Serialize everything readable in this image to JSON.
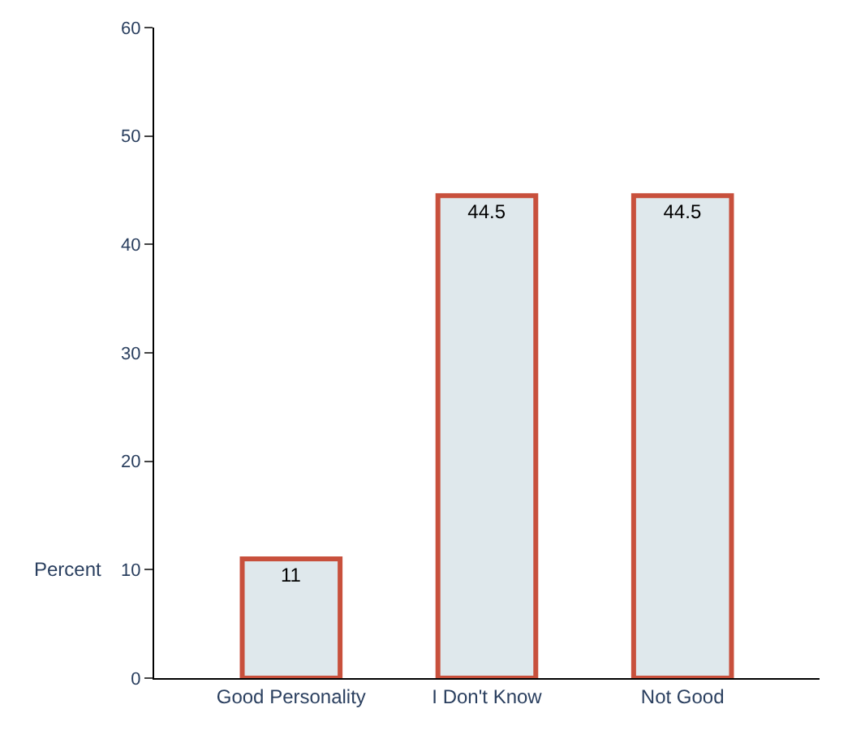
{
  "chart_data": {
    "type": "bar",
    "categories": [
      "Good Personality",
      "I Don't Know",
      "Not Good"
    ],
    "values": [
      11,
      44.5,
      44.5
    ],
    "color": "#dfe8ec",
    "ylabel": "Percent",
    "ylim": [
      0,
      60
    ],
    "yticks": [
      0,
      10,
      20,
      30,
      40,
      50,
      60
    ],
    "data_labels": true,
    "legend": false
  }
}
